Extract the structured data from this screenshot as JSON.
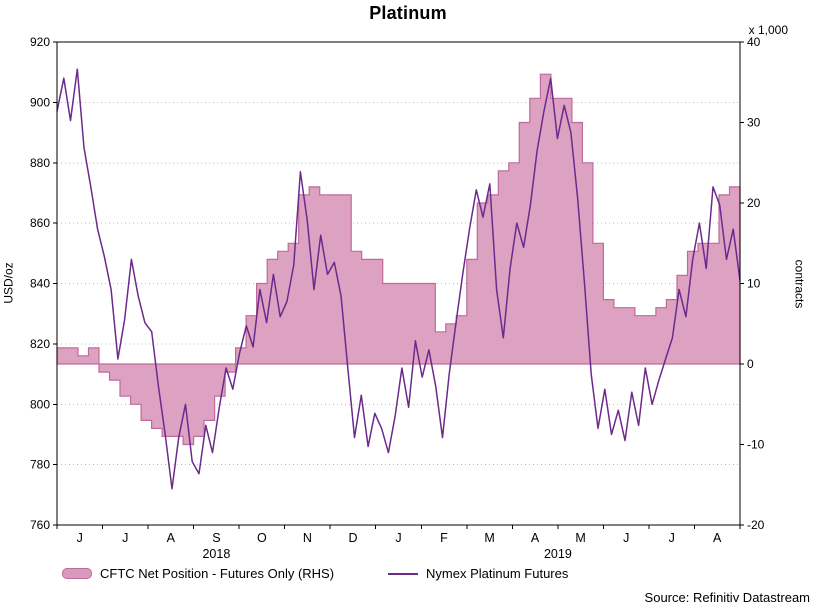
{
  "source": "Source: Refinitiv Datastream",
  "colors": {
    "area_fill": "#DA9ABD",
    "area_stroke": "#C06A9B",
    "line": "#6B2A8C",
    "grid": "#bbbbbb",
    "frame": "#000000"
  },
  "chart_data": {
    "type": "line",
    "title": "Platinum",
    "grid": "horizontal-dotted",
    "legend_position": "bottom",
    "left_axis": {
      "label": "USD/oz",
      "min": 760,
      "max": 920,
      "ticks": [
        760,
        780,
        800,
        820,
        840,
        860,
        880,
        900,
        920
      ]
    },
    "right_axis": {
      "label": "contracts",
      "unit": "x 1,000",
      "min": -20,
      "max": 40,
      "ticks": [
        -20,
        -10,
        0,
        10,
        20,
        30,
        40
      ]
    },
    "x_axis": {
      "start": "Jun 2018",
      "end": "Aug 2019",
      "month_labels": [
        "J",
        "J",
        "A",
        "S",
        "O",
        "N",
        "D",
        "J",
        "F",
        "M",
        "A",
        "M",
        "J",
        "J",
        "A"
      ],
      "years": [
        {
          "label": "2018",
          "start": 0,
          "end": 7
        },
        {
          "label": "2019",
          "start": 7,
          "end": 15
        }
      ]
    },
    "series": [
      {
        "name": "CFTC Net Position - Futures Only (RHS)",
        "axis": "right",
        "type": "step-area",
        "interval": "weekly",
        "values": [
          2,
          2,
          1,
          2,
          -1,
          -2,
          -4,
          -5,
          -7,
          -8,
          -9,
          -9,
          -10,
          -9,
          -7,
          -4,
          -1,
          2,
          6,
          10,
          13,
          14,
          15,
          21,
          22,
          21,
          21,
          21,
          14,
          13,
          13,
          10,
          10,
          10,
          10,
          10,
          4,
          5,
          6,
          13,
          20,
          21,
          24,
          25,
          30,
          33,
          36,
          33,
          33,
          30,
          25,
          15,
          8,
          7,
          7,
          6,
          6,
          7,
          8,
          11,
          14,
          15,
          15,
          21,
          22
        ]
      },
      {
        "name": "Nymex Platinum Futures",
        "axis": "left",
        "type": "line",
        "values": [
          897,
          908,
          894,
          911,
          885,
          872,
          858,
          849,
          838,
          815,
          828,
          848,
          836,
          827,
          824,
          806,
          790,
          772,
          789,
          800,
          781,
          777,
          793,
          784,
          799,
          812,
          805,
          817,
          826,
          819,
          838,
          827,
          843,
          829,
          834,
          846,
          877,
          861,
          838,
          856,
          843,
          847,
          836,
          812,
          789,
          803,
          786,
          797,
          792,
          784,
          796,
          812,
          799,
          821,
          809,
          818,
          806,
          789,
          810,
          827,
          843,
          858,
          871,
          862,
          873,
          838,
          822,
          845,
          860,
          852,
          866,
          884,
          897,
          908,
          888,
          899,
          890,
          868,
          840,
          810,
          792,
          805,
          790,
          798,
          788,
          804,
          793,
          812,
          800,
          808,
          815,
          822,
          838,
          829,
          848,
          860,
          845,
          872,
          866,
          848,
          858,
          841
        ]
      }
    ]
  }
}
